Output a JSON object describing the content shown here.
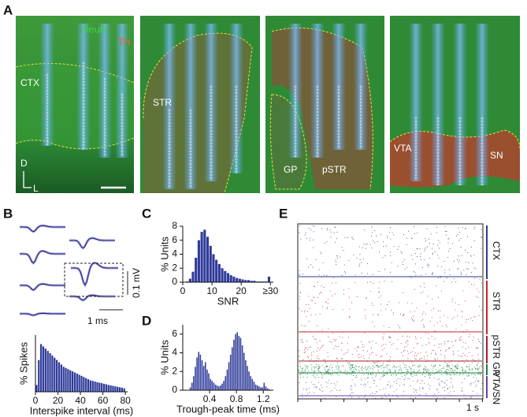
{
  "panel_labels": [
    "A",
    "B",
    "C",
    "D",
    "E"
  ],
  "panel_a": {
    "stains": [
      "NeuN",
      "Th"
    ],
    "regions": [
      "CTX",
      "STR",
      "GP",
      "pSTR",
      "VTA",
      "SN"
    ],
    "orientation": [
      "D",
      "L"
    ]
  },
  "panel_b": {
    "voltage_scale": "0.1 mV",
    "time_scale": "1 ms"
  },
  "panel_e": {
    "regions": [
      {
        "name": "CTX",
        "color": "#2b3d8f"
      },
      {
        "name": "STR",
        "color": "#c8232c"
      },
      {
        "name": "pSTR",
        "color": "#a81e2a"
      },
      {
        "name": "GP",
        "color": "#17803c"
      },
      {
        "name": "VTA/SN",
        "color": "#6b3fa3"
      }
    ],
    "time_scale": "1 s"
  },
  "chart_data": [
    {
      "type": "histogram",
      "y_label": "% Spikes",
      "x_label": "Interspike interval (ms)",
      "color": "#2f3b9a",
      "bins": [
        0,
        2,
        4,
        6,
        8,
        10,
        12,
        14,
        16,
        18,
        20,
        22,
        24,
        26,
        28,
        30,
        32,
        34,
        36,
        38,
        40,
        42,
        44,
        46,
        48,
        50,
        52,
        54,
        56,
        58,
        60,
        62,
        64,
        66,
        68,
        70,
        72,
        74,
        76,
        78,
        80
      ],
      "values": [
        0.3,
        1.4,
        2.1,
        2.0,
        1.9,
        1.8,
        1.7,
        1.6,
        1.5,
        1.4,
        1.3,
        1.2,
        1.1,
        1.05,
        1.0,
        0.95,
        0.9,
        0.85,
        0.8,
        0.75,
        0.7,
        0.65,
        0.6,
        0.55,
        0.5,
        0.48,
        0.45,
        0.42,
        0.4,
        0.38,
        0.35,
        0.33,
        0.3,
        0.28,
        0.26,
        0.24,
        0.22,
        0.2,
        0.18,
        0.15
      ],
      "xlim": [
        0,
        82
      ],
      "ylim": [
        0,
        2.5
      ],
      "xticks": [
        0,
        20,
        40,
        60,
        80
      ]
    },
    {
      "type": "histogram",
      "y_label": "% Units",
      "x_label": "SNR",
      "color": "#2f3b9a",
      "bins": [
        0,
        1,
        2,
        3,
        4,
        5,
        6,
        7,
        8,
        9,
        10,
        11,
        12,
        13,
        14,
        15,
        16,
        17,
        18,
        19,
        20,
        21,
        22,
        23,
        24,
        25,
        26,
        27,
        28,
        29,
        30
      ],
      "values": [
        0,
        0.1,
        0.5,
        1.5,
        3.5,
        6.0,
        7.2,
        7.5,
        6.5,
        5.2,
        4.0,
        3.2,
        2.6,
        2.0,
        1.6,
        1.3,
        1.0,
        0.8,
        0.6,
        0.5,
        0.4,
        0.3,
        0.3,
        0.2,
        0.2,
        0.1,
        0.1,
        0.1,
        0.1,
        0.8
      ],
      "xlim": [
        0,
        31
      ],
      "ylim": [
        0,
        8
      ],
      "xticks": [
        0,
        10,
        20,
        {
          "value": 30,
          "label": "≥30"
        }
      ],
      "yticks": [
        0,
        2,
        4,
        6,
        8
      ]
    },
    {
      "type": "histogram",
      "y_label": "% Units",
      "x_label": "Trough-peak time (ms)",
      "color": "#2f3b9a",
      "bins": [
        0.1,
        0.125,
        0.15,
        0.175,
        0.2,
        0.225,
        0.25,
        0.275,
        0.3,
        0.325,
        0.35,
        0.375,
        0.4,
        0.425,
        0.45,
        0.475,
        0.5,
        0.525,
        0.55,
        0.575,
        0.6,
        0.625,
        0.65,
        0.675,
        0.7,
        0.725,
        0.75,
        0.775,
        0.8,
        0.825,
        0.85,
        0.875,
        0.9,
        0.925,
        0.95,
        0.975,
        1.0,
        1.025,
        1.05,
        1.075,
        1.1,
        1.125,
        1.15,
        1.175,
        1.2,
        1.225,
        1.25,
        1.275,
        1.3
      ],
      "values": [
        0.3,
        0.8,
        1.5,
        2.5,
        3.5,
        4.1,
        3.8,
        3.2,
        2.6,
        3.0,
        2.2,
        1.8,
        1.2,
        1.0,
        0.8,
        0.6,
        0.5,
        0.4,
        0.5,
        0.7,
        1.0,
        1.5,
        2.2,
        3.0,
        3.8,
        4.6,
        5.4,
        6.0,
        6.2,
        5.8,
        5.6,
        4.8,
        4.0,
        3.2,
        2.6,
        2.0,
        1.5,
        1.2,
        0.9,
        0.6,
        0.5,
        0.4,
        0.3,
        0.3,
        0.8,
        0.4,
        0.2,
        0.1
      ],
      "xlim": [
        0,
        1.35
      ],
      "ylim": [
        0,
        7
      ],
      "xticks": [
        0.4,
        0.8,
        1.2
      ],
      "yticks": [
        0,
        2,
        4,
        6
      ]
    }
  ]
}
